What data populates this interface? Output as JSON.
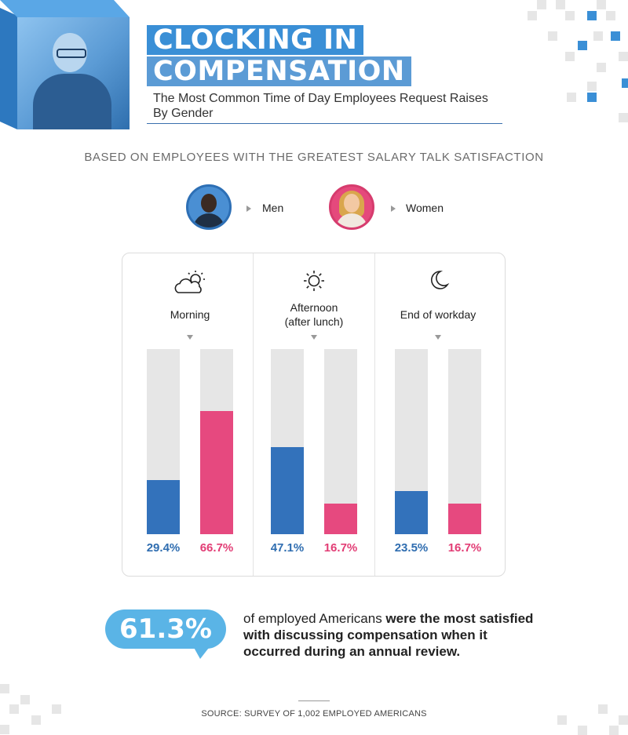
{
  "header": {
    "title_line1": "CLOCKING IN",
    "title_line2": "COMPENSATION",
    "subtitle": "The Most Common Time of Day Employees Request Raises By Gender"
  },
  "basis_note": "BASED ON EMPLOYEES WITH THE GREATEST SALARY TALK SATISFACTION",
  "legend": {
    "men_label": "Men",
    "women_label": "Women"
  },
  "colors": {
    "men": "#3372bb",
    "women": "#e6497f",
    "track": "#e6e6e6",
    "accent": "#3a8fd6"
  },
  "chart_data": {
    "type": "bar",
    "categories": [
      "Morning",
      "Afternoon (after lunch)",
      "End of workday"
    ],
    "category_icons": [
      "cloud-sun-icon",
      "sun-icon",
      "moon-icon"
    ],
    "series": [
      {
        "name": "Men",
        "values": [
          29.4,
          47.1,
          23.5
        ],
        "labels": [
          "29.4%",
          "47.1%",
          "23.5%"
        ]
      },
      {
        "name": "Women",
        "values": [
          66.7,
          16.7,
          16.7
        ],
        "labels": [
          "66.7%",
          "16.7%",
          "16.7%"
        ]
      }
    ],
    "ylim": [
      0,
      100
    ],
    "title": "The Most Common Time of Day Employees Request Raises By Gender",
    "legend_placement": "top",
    "grid": false
  },
  "periods": {
    "morning": "Morning",
    "afternoon_line1": "Afternoon",
    "afternoon_line2": "(after lunch)",
    "end": "End of workday"
  },
  "callout": {
    "stat": "61.3%",
    "text_plain": "of employed Americans ",
    "text_bold": "were the most satisfied with discussing compensation when it occurred during an annual review."
  },
  "source": "SOURCE: SURVEY OF 1,002 EMPLOYED AMERICANS"
}
